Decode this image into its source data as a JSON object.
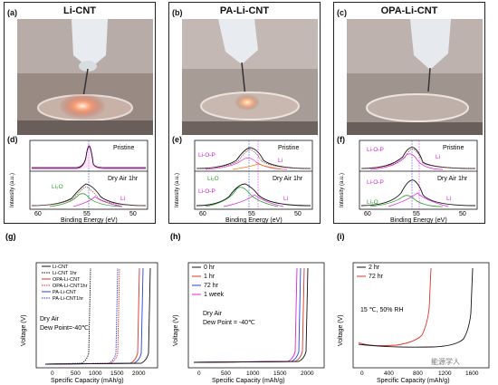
{
  "figure": {
    "panels_top": [
      {
        "letter": "(a)",
        "title": "Li-CNT"
      },
      {
        "letter": "(b)",
        "title": "PA-Li-CNT"
      },
      {
        "letter": "(c)",
        "title": "OPA-Li-CNT"
      }
    ],
    "xps": {
      "d": {
        "letter": "(d)",
        "top_label": "Pristine",
        "bottom_label": "Dry Air 1hr",
        "peaks": [
          "Li₂O",
          "Li"
        ]
      },
      "e": {
        "letter": "(e)",
        "top_label": "Pristine",
        "bottom_label": "Dry Air 1hr",
        "peaks_top": [
          "Li-O-P",
          "Li"
        ],
        "peaks_bottom": [
          "Li₂O",
          "Li-O-P",
          "Li"
        ]
      },
      "f": {
        "letter": "(f)",
        "top_label": "Pristine",
        "bottom_label": "Dry Air 1hr",
        "peaks_top": [
          "Li-O-P",
          "Li"
        ],
        "peaks_bottom": [
          "Li-O-P",
          "Li₂O",
          "Li"
        ]
      },
      "ylabel": "Intensity (a.u.)",
      "xlabel": "Binding Energy (eV)",
      "xticks": [
        "60",
        "55",
        "50"
      ]
    },
    "voltage": {
      "g": {
        "letter": "(g)",
        "legend": [
          "Li-CNT",
          "Li-CNT 1hr",
          "OPA-Li-CNT",
          "OPA-Li-CNT1hr",
          "PA-Li-CNT",
          "PA-Li-CNT1hr"
        ],
        "note1": "Dry Air",
        "note2": "Dew Point=-40℃",
        "xticks": [
          "0",
          "500",
          "1000",
          "1500",
          "2000"
        ]
      },
      "h": {
        "letter": "(h)",
        "legend": [
          "0 hr",
          "1 hr",
          "72 hr",
          "1 week"
        ],
        "note1": "Dry Air",
        "note2": "Dew Point = -40℃",
        "xticks": [
          "0",
          "500",
          "1000",
          "1500",
          "2000"
        ]
      },
      "i": {
        "letter": "(i)",
        "legend": [
          "2 hr",
          "72 hr"
        ],
        "note1": "15 ℃, 50% RH",
        "xticks": [
          "0",
          "400",
          "800",
          "1200",
          "1600"
        ]
      },
      "ylabel": "Voltage (V)",
      "xlabel": "Specific Capacity (mAh/g)"
    },
    "watermark": "能源学人",
    "colors": {
      "black": "#111111",
      "red": "#e0322a",
      "blue": "#2a3fe0",
      "magenta": "#e020e0",
      "green": "#2aa02a",
      "fit": "#a05050"
    }
  },
  "chart_data": [
    {
      "type": "line",
      "title": "",
      "xlabel": "Specific Capacity (mAh/g)",
      "ylabel": "Voltage (V)",
      "xlim": [
        0,
        2200
      ],
      "series": [
        {
          "name": "Li-CNT",
          "capacity_end": 1900
        },
        {
          "name": "Li-CNT 1hr",
          "capacity_end": 900
        },
        {
          "name": "OPA-Li-CNT",
          "capacity_end": 1750
        },
        {
          "name": "OPA-Li-CNT1hr",
          "capacity_end": 1350
        },
        {
          "name": "PA-Li-CNT",
          "capacity_end": 1800
        },
        {
          "name": "PA-Li-CNT1hr",
          "capacity_end": 1300
        }
      ]
    },
    {
      "type": "line",
      "title": "",
      "xlabel": "Specific Capacity (mAh/g)",
      "ylabel": "Voltage (V)",
      "xlim": [
        0,
        2200
      ],
      "series": [
        {
          "name": "0 hr",
          "capacity_end": 1850
        },
        {
          "name": "1 hr",
          "capacity_end": 1800
        },
        {
          "name": "72 hr",
          "capacity_end": 1760
        },
        {
          "name": "1 week",
          "capacity_end": 1700
        }
      ]
    },
    {
      "type": "line",
      "title": "",
      "xlabel": "Specific Capacity (mAh/g)",
      "ylabel": "Voltage (V)",
      "xlim": [
        0,
        1700
      ],
      "series": [
        {
          "name": "2 hr",
          "capacity_end": 1550
        },
        {
          "name": "72 hr",
          "capacity_end": 950
        }
      ]
    }
  ]
}
